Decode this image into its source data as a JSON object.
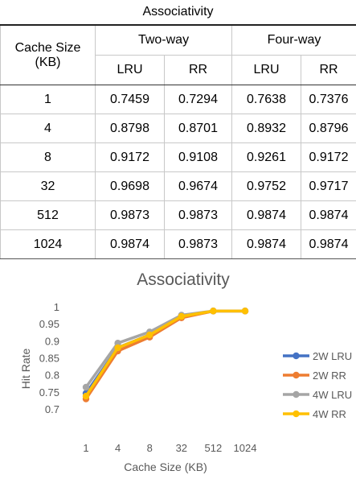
{
  "table": {
    "title": "Associativity",
    "rowheader": "Cache Size (KB)",
    "groups": [
      "Two-way",
      "Four-way"
    ],
    "subheaders": [
      "LRU",
      "RR",
      "LRU",
      "RR"
    ],
    "rows": [
      {
        "size": "1",
        "cells": [
          "0.7459",
          "0.7294",
          "0.7638",
          "0.7376"
        ]
      },
      {
        "size": "4",
        "cells": [
          "0.8798",
          "0.8701",
          "0.8932",
          "0.8796"
        ]
      },
      {
        "size": "8",
        "cells": [
          "0.9172",
          "0.9108",
          "0.9261",
          "0.9172"
        ]
      },
      {
        "size": "32",
        "cells": [
          "0.9698",
          "0.9674",
          "0.9752",
          "0.9717"
        ]
      },
      {
        "size": "512",
        "cells": [
          "0.9873",
          "0.9873",
          "0.9874",
          "0.9874"
        ]
      },
      {
        "size": "1024",
        "cells": [
          "0.9874",
          "0.9873",
          "0.9874",
          "0.9874"
        ]
      }
    ]
  },
  "chart_data": {
    "type": "line",
    "title": "Associativity",
    "xlabel": "Cache Size (KB)",
    "ylabel": "Hit Rate",
    "categories": [
      "1",
      "4",
      "8",
      "32",
      "512",
      "1024"
    ],
    "ylim": [
      0.7,
      1
    ],
    "yticks": [
      "1",
      "0.95",
      "0.9",
      "0.85",
      "0.8",
      "0.75",
      "0.7"
    ],
    "ytick_values": [
      1,
      0.95,
      0.9,
      0.85,
      0.8,
      0.75,
      0.7
    ],
    "grid": false,
    "legend": "right",
    "series": [
      {
        "name": "2W LRU",
        "color": "#4472C4",
        "values": [
          0.7459,
          0.8798,
          0.9172,
          0.9698,
          0.9873,
          0.9874
        ]
      },
      {
        "name": "2W RR",
        "color": "#ED7D31",
        "values": [
          0.7294,
          0.8701,
          0.9108,
          0.9674,
          0.9873,
          0.9873
        ]
      },
      {
        "name": "4W LRU",
        "color": "#A5A5A5",
        "values": [
          0.7638,
          0.8932,
          0.9261,
          0.9752,
          0.9874,
          0.9874
        ]
      },
      {
        "name": "4W RR",
        "color": "#FFC000",
        "values": [
          0.7376,
          0.8796,
          0.9172,
          0.9717,
          0.9874,
          0.9874
        ]
      }
    ]
  }
}
